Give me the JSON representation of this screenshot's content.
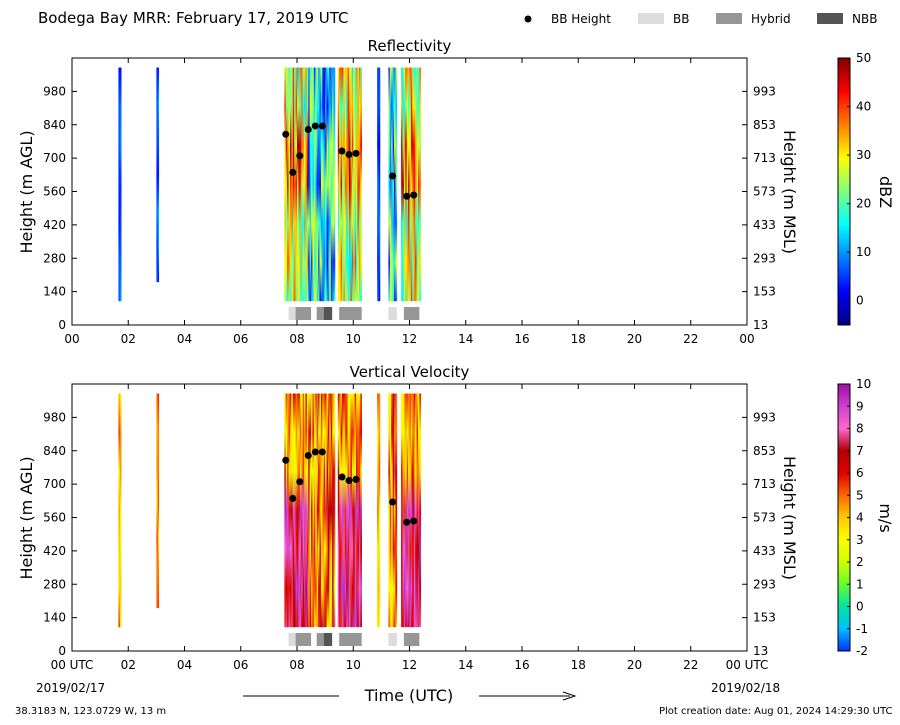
{
  "header": {
    "title": "Bodega Bay MRR:  February 17, 2019 UTC"
  },
  "legend": {
    "items": [
      {
        "label": "BB Height",
        "kind": "dot",
        "color": "#000000"
      },
      {
        "label": "BB",
        "kind": "box",
        "color": "#dcdcdc"
      },
      {
        "label": "Hybrid",
        "kind": "box",
        "color": "#969696"
      },
      {
        "label": "NBB",
        "kind": "box",
        "color": "#555555"
      }
    ]
  },
  "footer": {
    "location": "38.3183 N, 123.0729 W, 13 m",
    "created": "Plot creation date: Aug 01, 2024 14:29:30 UTC",
    "x_label": "Time (UTC)",
    "start_date": "2019/02/17",
    "end_date": "2019/02/18"
  },
  "chart_data": [
    {
      "type": "heatmap",
      "title": "Reflectivity",
      "ylabel": "Height (m AGL)",
      "y2label": "Height (m MSL)",
      "xlim": [
        0,
        24
      ],
      "ylim": [
        0,
        1120
      ],
      "x_ticks": [
        "00",
        "02",
        "04",
        "06",
        "08",
        "10",
        "12",
        "14",
        "16",
        "18",
        "20",
        "22",
        "00"
      ],
      "y_ticks": [
        "0",
        "140",
        "280",
        "420",
        "560",
        "700",
        "840",
        "980"
      ],
      "y2_ticks": [
        "13",
        "153",
        "293",
        "433",
        "573",
        "713",
        "853",
        "993"
      ],
      "colorbar": {
        "label": "dBZ",
        "range": [
          -5,
          50
        ],
        "ticks": [
          "0",
          "10",
          "20",
          "30",
          "40",
          "50"
        ],
        "colors": [
          "#00007f",
          "#0000ff",
          "#007fff",
          "#00ffff",
          "#7fff7f",
          "#ffff00",
          "#ff7f00",
          "#ff0000",
          "#7f0000"
        ]
      },
      "bb_height": [
        {
          "time": 7.6,
          "height": 800
        },
        {
          "time": 7.85,
          "height": 640
        },
        {
          "time": 8.1,
          "height": 710
        },
        {
          "time": 8.4,
          "height": 820
        },
        {
          "time": 8.65,
          "height": 835
        },
        {
          "time": 8.9,
          "height": 835
        },
        {
          "time": 9.6,
          "height": 730
        },
        {
          "time": 9.85,
          "height": 715
        },
        {
          "time": 10.1,
          "height": 720
        },
        {
          "time": 11.4,
          "height": 625
        },
        {
          "time": 11.9,
          "height": 540
        },
        {
          "time": 12.15,
          "height": 545
        }
      ]
    },
    {
      "type": "heatmap",
      "title": "Vertical Velocity",
      "ylabel": "Height (m AGL)",
      "y2label": "Height (m MSL)",
      "xlim": [
        0,
        24
      ],
      "ylim": [
        0,
        1120
      ],
      "x_ticks": [
        "00 UTC",
        "02",
        "04",
        "06",
        "08",
        "10",
        "12",
        "14",
        "16",
        "18",
        "20",
        "22",
        "00 UTC"
      ],
      "y_ticks": [
        "0",
        "140",
        "280",
        "420",
        "560",
        "700",
        "840",
        "980"
      ],
      "y2_ticks": [
        "13",
        "153",
        "293",
        "433",
        "573",
        "713",
        "853",
        "993"
      ],
      "colorbar": {
        "label": "m/s",
        "range": [
          -2,
          10
        ],
        "ticks": [
          "-2",
          "-1",
          "0",
          "1",
          "2",
          "3",
          "4",
          "5",
          "6",
          "7",
          "8",
          "9",
          "10"
        ],
        "colors": [
          "#0033ff",
          "#00bfff",
          "#00e5a0",
          "#66ff33",
          "#ccff00",
          "#ffff00",
          "#ffcc00",
          "#ff6600",
          "#e00000",
          "#b00000",
          "#ff66cc",
          "#d040d0",
          "#a010a0"
        ]
      },
      "bb_height": [
        {
          "time": 7.6,
          "height": 800
        },
        {
          "time": 7.85,
          "height": 640
        },
        {
          "time": 8.1,
          "height": 710
        },
        {
          "time": 8.4,
          "height": 820
        },
        {
          "time": 8.65,
          "height": 835
        },
        {
          "time": 8.9,
          "height": 835
        },
        {
          "time": 9.6,
          "height": 730
        },
        {
          "time": 9.85,
          "height": 715
        },
        {
          "time": 10.1,
          "height": 720
        },
        {
          "time": 11.4,
          "height": 625
        },
        {
          "time": 11.9,
          "height": 540
        },
        {
          "time": 12.15,
          "height": 545
        }
      ]
    }
  ],
  "bb_type_bar": [
    {
      "start": 7.7,
      "end": 7.95,
      "type": "BB"
    },
    {
      "start": 7.95,
      "end": 8.5,
      "type": "Hybrid"
    },
    {
      "start": 8.7,
      "end": 8.95,
      "type": "Hybrid"
    },
    {
      "start": 8.95,
      "end": 9.25,
      "type": "NBB"
    },
    {
      "start": 9.5,
      "end": 10.3,
      "type": "Hybrid"
    },
    {
      "start": 11.25,
      "end": 11.55,
      "type": "BB"
    },
    {
      "start": 11.8,
      "end": 12.35,
      "type": "Hybrid"
    }
  ],
  "echo_columns": [
    {
      "start": 1.65,
      "end": 1.75,
      "top": 1080,
      "bottom": 100,
      "profile": "weak"
    },
    {
      "start": 3.0,
      "end": 3.08,
      "top": 1080,
      "bottom": 180,
      "profile": "weak"
    },
    {
      "start": 7.55,
      "end": 8.4,
      "top": 1080,
      "bottom": 100,
      "profile": "strong"
    },
    {
      "start": 8.4,
      "end": 9.35,
      "top": 1080,
      "bottom": 100,
      "profile": "mixed"
    },
    {
      "start": 9.45,
      "end": 10.3,
      "top": 1080,
      "bottom": 100,
      "profile": "strong"
    },
    {
      "start": 10.85,
      "end": 10.95,
      "top": 1080,
      "bottom": 100,
      "profile": "weak"
    },
    {
      "start": 11.25,
      "end": 11.55,
      "top": 1080,
      "bottom": 100,
      "profile": "mixed"
    },
    {
      "start": 11.7,
      "end": 12.4,
      "top": 1080,
      "bottom": 100,
      "profile": "strong"
    }
  ]
}
